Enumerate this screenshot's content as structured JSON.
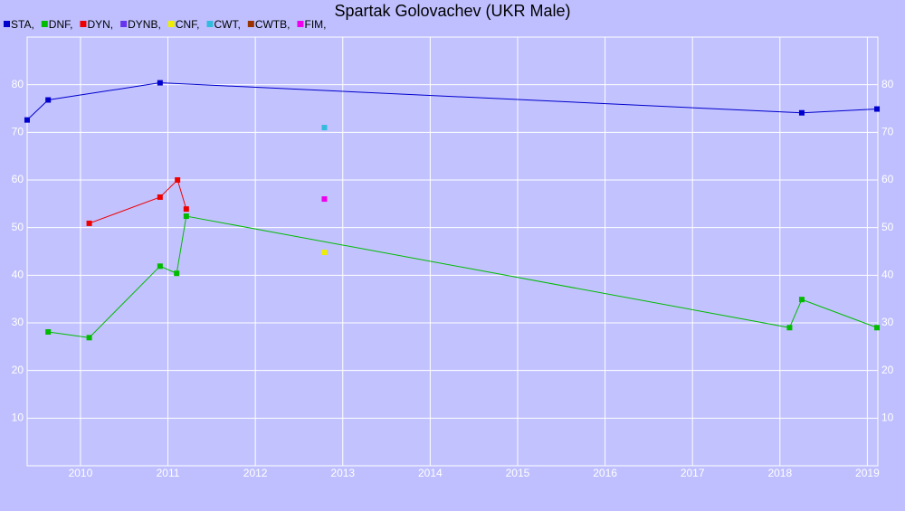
{
  "chart_data": {
    "type": "line",
    "title": "Spartak Golovachev (UKR Male)",
    "xlim": [
      2009.39,
      2019.12
    ],
    "xticks": [
      2010,
      2011,
      2012,
      2013,
      2014,
      2015,
      2016,
      2017,
      2018,
      2019
    ],
    "ylim": [
      0,
      90
    ],
    "yticks": [
      10,
      20,
      30,
      40,
      50,
      60,
      70,
      80
    ],
    "grid": true,
    "series": [
      {
        "name": "STA,",
        "color": "#0000cc",
        "x": [
          2009.39,
          2009.63,
          2010.91,
          2018.25,
          2019.11
        ],
        "values": [
          72.6,
          76.8,
          80.4,
          74.1,
          74.9
        ]
      },
      {
        "name": "DNF,",
        "color": "#00bb00",
        "x": [
          2009.63,
          2010.1,
          2010.91,
          2011.1,
          2011.21,
          2018.11,
          2018.25,
          2019.11
        ],
        "values": [
          28.1,
          26.9,
          41.9,
          40.4,
          52.4,
          29.0,
          34.9,
          29.0
        ]
      },
      {
        "name": "DYN,",
        "color": "#ee0000",
        "x": [
          2010.1,
          2010.91,
          2011.11,
          2011.21
        ],
        "values": [
          50.9,
          56.4,
          60.0,
          53.9
        ]
      },
      {
        "name": "DYNB,",
        "color": "#6633ee",
        "x": [],
        "values": []
      },
      {
        "name": "CNF,",
        "color": "#eeee00",
        "x": [
          2012.79
        ],
        "values": [
          44.8
        ]
      },
      {
        "name": "CWT,",
        "color": "#33bbdd",
        "x": [
          2012.79
        ],
        "values": [
          71.0
        ]
      },
      {
        "name": "CWTB,",
        "color": "#993300",
        "x": [],
        "values": []
      },
      {
        "name": "FIM,",
        "color": "#ee00ee",
        "x": [
          2012.79
        ],
        "values": [
          56.0
        ]
      }
    ]
  }
}
